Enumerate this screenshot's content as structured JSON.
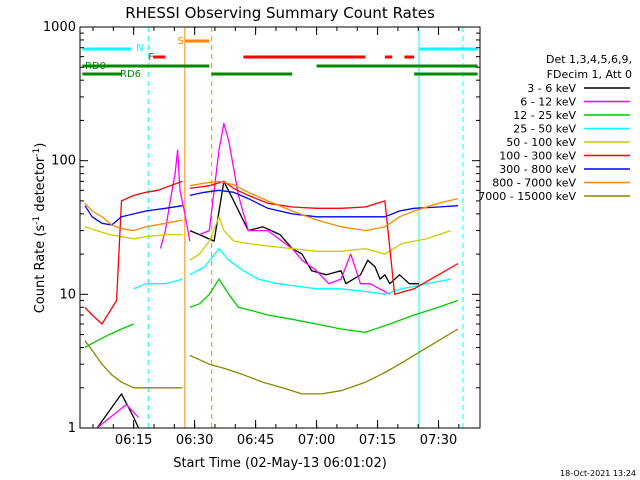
{
  "chart_data": {
    "type": "line",
    "title": "RHESSI Observing Summary Count Rates",
    "xlabel": "Start Time (02-May-13 06:01:02)",
    "ylabel_main": "Count Rate (s",
    "ylabel_sup": "-1",
    "ylabel_rest": " detector",
    "ylabel_sup2": "-1",
    "ylabel_end": ")",
    "yscale": "log",
    "ylim": [
      1,
      1000
    ],
    "xlim_minutes": [
      6.03,
      7.67
    ],
    "x_ticks": [
      "06:15",
      "06:30",
      "06:45",
      "07:00",
      "07:15",
      "07:30"
    ],
    "y_ticks": [
      "1",
      "10",
      "100",
      "1000"
    ],
    "legend_header": [
      "Det 1,3,4,5,6,9,",
      "FDecim 1, Att 0"
    ],
    "footer_date": "18-Oct-2021 13:24",
    "flags": {
      "N": "N",
      "F": "F",
      "S": "S",
      "RD0": "RD0",
      "RD6": "RD6"
    },
    "series": [
      {
        "name": "3 - 6 keV",
        "color": "#000000",
        "segments": [
          [
            [
              6.1,
              1.0
            ],
            [
              6.2,
              1.8
            ],
            [
              6.25,
              1.2
            ],
            [
              6.27,
              1.0
            ]
          ],
          [
            [
              6.48,
              30
            ],
            [
              6.52,
              28
            ],
            [
              6.58,
              25
            ],
            [
              6.62,
              70
            ],
            [
              6.66,
              50
            ],
            [
              6.72,
              30
            ],
            [
              6.78,
              32
            ],
            [
              6.85,
              28
            ],
            [
              6.9,
              22
            ],
            [
              6.94,
              20
            ],
            [
              6.98,
              15
            ],
            [
              7.04,
              14
            ],
            [
              7.1,
              15
            ],
            [
              7.12,
              12
            ],
            [
              7.18,
              14
            ],
            [
              7.21,
              18
            ],
            [
              7.24,
              16
            ],
            [
              7.26,
              13
            ],
            [
              7.28,
              14
            ],
            [
              7.3,
              12
            ],
            [
              7.34,
              14
            ],
            [
              7.38,
              12
            ],
            [
              7.42,
              12
            ]
          ]
        ]
      },
      {
        "name": "6 - 12 keV",
        "color": "#ff00ff",
        "segments": [
          [
            [
              6.1,
              1.0
            ],
            [
              6.22,
              1.5
            ],
            [
              6.27,
              1.2
            ]
          ],
          [
            [
              6.36,
              22
            ],
            [
              6.38,
              30
            ],
            [
              6.4,
              50
            ],
            [
              6.42,
              80
            ],
            [
              6.43,
              120
            ],
            [
              6.44,
              60
            ],
            [
              6.46,
              40
            ],
            [
              6.48,
              25
            ]
          ],
          [
            [
              6.52,
              28
            ],
            [
              6.56,
              30
            ],
            [
              6.6,
              120
            ],
            [
              6.62,
              190
            ],
            [
              6.64,
              140
            ],
            [
              6.68,
              55
            ],
            [
              6.72,
              30
            ],
            [
              6.8,
              30
            ],
            [
              6.9,
              22
            ],
            [
              6.94,
              18
            ],
            [
              7.0,
              15
            ],
            [
              7.05,
              12
            ],
            [
              7.1,
              13
            ],
            [
              7.14,
              20
            ],
            [
              7.18,
              12
            ],
            [
              7.22,
              12
            ],
            [
              7.3,
              10
            ]
          ]
        ]
      },
      {
        "name": "12 - 25 keV",
        "color": "#00cc00",
        "segments": [
          [
            [
              6.05,
              4.0
            ],
            [
              6.1,
              4.5
            ],
            [
              6.15,
              5.0
            ],
            [
              6.2,
              5.5
            ],
            [
              6.25,
              6.0
            ]
          ],
          [
            [
              6.48,
              8
            ],
            [
              6.52,
              8.5
            ],
            [
              6.56,
              10
            ],
            [
              6.6,
              13
            ],
            [
              6.64,
              10
            ],
            [
              6.68,
              8
            ],
            [
              6.74,
              7.5
            ],
            [
              6.8,
              7
            ],
            [
              6.9,
              6.5
            ],
            [
              7.0,
              6
            ],
            [
              7.1,
              5.5
            ],
            [
              7.2,
              5.2
            ],
            [
              7.3,
              6
            ],
            [
              7.4,
              7
            ],
            [
              7.5,
              8
            ],
            [
              7.58,
              9
            ]
          ]
        ]
      },
      {
        "name": "25 - 50 keV",
        "color": "#00ffff",
        "segments": [
          [
            [
              6.25,
              11
            ],
            [
              6.3,
              12
            ],
            [
              6.38,
              12
            ],
            [
              6.45,
              13
            ]
          ],
          [
            [
              6.48,
              14
            ],
            [
              6.54,
              16
            ],
            [
              6.6,
              22
            ],
            [
              6.64,
              18
            ],
            [
              6.7,
              15
            ],
            [
              6.76,
              13
            ],
            [
              6.84,
              12
            ],
            [
              6.92,
              11.5
            ],
            [
              7.0,
              11
            ],
            [
              7.1,
              11
            ],
            [
              7.2,
              10.5
            ],
            [
              7.28,
              10
            ],
            [
              7.35,
              11
            ],
            [
              7.45,
              12
            ],
            [
              7.55,
              13
            ]
          ]
        ]
      },
      {
        "name": "50 - 100 keV",
        "color": "#cccc00",
        "segments": [
          [
            [
              6.05,
              32
            ],
            [
              6.1,
              30
            ],
            [
              6.15,
              28
            ],
            [
              6.2,
              27
            ],
            [
              6.25,
              26
            ],
            [
              6.3,
              27
            ],
            [
              6.38,
              28
            ],
            [
              6.45,
              28
            ]
          ],
          [
            [
              6.48,
              18
            ],
            [
              6.52,
              20
            ],
            [
              6.56,
              25
            ],
            [
              6.6,
              38
            ],
            [
              6.62,
              30
            ],
            [
              6.66,
              25
            ],
            [
              6.72,
              24
            ],
            [
              6.8,
              23
            ],
            [
              6.9,
              22
            ],
            [
              7.0,
              21
            ],
            [
              7.1,
              21
            ],
            [
              7.2,
              22
            ],
            [
              7.28,
              20
            ],
            [
              7.35,
              24
            ],
            [
              7.45,
              26
            ],
            [
              7.55,
              30
            ]
          ]
        ]
      },
      {
        "name": "100 - 300 keV",
        "color": "#ff0000",
        "segments": [
          [
            [
              6.05,
              8
            ],
            [
              6.08,
              7
            ],
            [
              6.12,
              6
            ],
            [
              6.18,
              9
            ],
            [
              6.2,
              50
            ],
            [
              6.25,
              55
            ],
            [
              6.3,
              58
            ],
            [
              6.35,
              60
            ],
            [
              6.4,
              65
            ],
            [
              6.45,
              70
            ]
          ],
          [
            [
              6.48,
              62
            ],
            [
              6.56,
              65
            ],
            [
              6.62,
              70
            ],
            [
              6.66,
              62
            ],
            [
              6.72,
              55
            ],
            [
              6.8,
              48
            ],
            [
              6.9,
              45
            ],
            [
              7.0,
              44
            ],
            [
              7.1,
              44
            ],
            [
              7.2,
              45
            ],
            [
              7.28,
              50
            ],
            [
              7.32,
              10
            ],
            [
              7.4,
              11
            ],
            [
              7.5,
              14
            ],
            [
              7.58,
              17
            ]
          ]
        ]
      },
      {
        "name": "300 - 800 keV",
        "color": "#0000ff",
        "segments": [
          [
            [
              6.05,
              46
            ],
            [
              6.08,
              38
            ],
            [
              6.12,
              34
            ],
            [
              6.16,
              33
            ],
            [
              6.2,
              38
            ],
            [
              6.25,
              40
            ],
            [
              6.3,
              42
            ],
            [
              6.38,
              44
            ],
            [
              6.45,
              46
            ]
          ],
          [
            [
              6.48,
              55
            ],
            [
              6.54,
              58
            ],
            [
              6.6,
              60
            ],
            [
              6.66,
              58
            ],
            [
              6.72,
              52
            ],
            [
              6.8,
              44
            ],
            [
              6.9,
              40
            ],
            [
              7.0,
              38
            ],
            [
              7.1,
              38
            ],
            [
              7.2,
              38
            ],
            [
              7.28,
              38
            ],
            [
              7.34,
              42
            ],
            [
              7.4,
              44
            ],
            [
              7.5,
              45
            ],
            [
              7.58,
              46
            ]
          ]
        ]
      },
      {
        "name": "800 - 7000 keV",
        "color": "#ff8800",
        "segments": [
          [
            [
              6.05,
              48
            ],
            [
              6.08,
              42
            ],
            [
              6.12,
              38
            ],
            [
              6.16,
              33
            ],
            [
              6.2,
              31
            ],
            [
              6.25,
              30
            ],
            [
              6.3,
              32
            ],
            [
              6.38,
              34
            ],
            [
              6.45,
              36
            ]
          ],
          [
            [
              6.48,
              65
            ],
            [
              6.54,
              68
            ],
            [
              6.6,
              70
            ],
            [
              6.66,
              66
            ],
            [
              6.72,
              58
            ],
            [
              6.8,
              50
            ],
            [
              6.9,
              42
            ],
            [
              7.0,
              36
            ],
            [
              7.1,
              32
            ],
            [
              7.2,
              30
            ],
            [
              7.28,
              32
            ],
            [
              7.34,
              38
            ],
            [
              7.4,
              42
            ],
            [
              7.5,
              48
            ],
            [
              7.58,
              52
            ]
          ]
        ]
      },
      {
        "name": "7000 - 15000 keV",
        "color": "#888800",
        "segments": [
          [
            [
              6.05,
              4.5
            ],
            [
              6.08,
              3.8
            ],
            [
              6.12,
              3.0
            ],
            [
              6.16,
              2.5
            ],
            [
              6.2,
              2.2
            ],
            [
              6.25,
              2.0
            ],
            [
              6.3,
              2.0
            ],
            [
              6.38,
              2.0
            ],
            [
              6.45,
              2.0
            ]
          ],
          [
            [
              6.48,
              3.5
            ],
            [
              6.56,
              3.0
            ],
            [
              6.62,
              2.8
            ],
            [
              6.7,
              2.5
            ],
            [
              6.78,
              2.2
            ],
            [
              6.86,
              2.0
            ],
            [
              6.94,
              1.8
            ],
            [
              7.02,
              1.8
            ],
            [
              7.1,
              1.9
            ],
            [
              7.2,
              2.2
            ],
            [
              7.28,
              2.6
            ],
            [
              7.34,
              3.0
            ],
            [
              7.4,
              3.5
            ],
            [
              7.5,
              4.5
            ],
            [
              7.58,
              5.5
            ]
          ]
        ]
      }
    ]
  }
}
